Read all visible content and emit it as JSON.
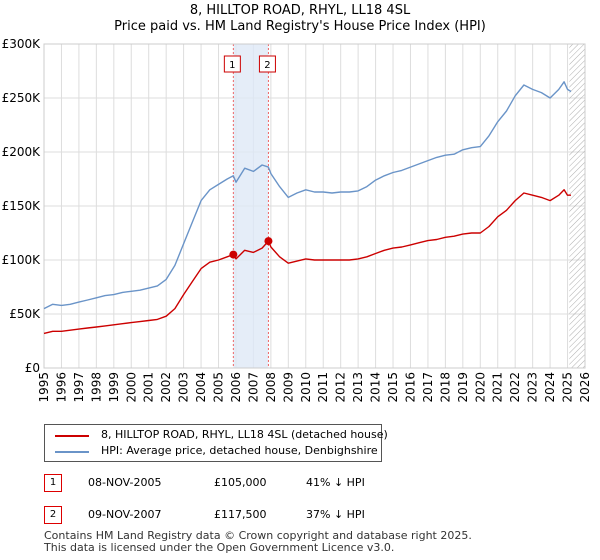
{
  "titles": {
    "line1": "8, HILLTOP ROAD, RHYL, LL18 4SL",
    "line2": "Price paid vs. HM Land Registry's House Price Index (HPI)"
  },
  "colors": {
    "property": "#cc0000",
    "hpi": "#6a94c8",
    "highlight": "#dfe8f6",
    "grid": "#dddddd",
    "marker_line": "#ee6666"
  },
  "legend": {
    "property_label": "8, HILLTOP ROAD, RHYL, LL18 4SL (detached house)",
    "hpi_label": "HPI: Average price, detached house, Denbighshire"
  },
  "transactions": [
    {
      "id": "1",
      "date": "08-NOV-2005",
      "price": "£105,000",
      "hpi_diff": "41% ↓ HPI"
    },
    {
      "id": "2",
      "date": "09-NOV-2007",
      "price": "£117,500",
      "hpi_diff": "37% ↓ HPI"
    }
  ],
  "footer": {
    "line1": "Contains HM Land Registry data © Crown copyright and database right 2025.",
    "line2": "This data is licensed under the Open Government Licence v3.0."
  },
  "chart_data": {
    "type": "line",
    "title": "8, HILLTOP ROAD, RHYL, LL18 4SL — Price paid vs. HM Land Registry's House Price Index (HPI)",
    "xlim": [
      1995,
      2026
    ],
    "ylim": [
      0,
      300000
    ],
    "x_ticks": [
      1995,
      1996,
      1997,
      1998,
      1999,
      2000,
      2001,
      2002,
      2003,
      2004,
      2005,
      2006,
      2007,
      2008,
      2009,
      2010,
      2011,
      2012,
      2013,
      2014,
      2015,
      2016,
      2017,
      2018,
      2019,
      2020,
      2021,
      2022,
      2023,
      2024,
      2025,
      2026
    ],
    "y_ticks": [
      {
        "value": 0,
        "label": "£0"
      },
      {
        "value": 50000,
        "label": "£50K"
      },
      {
        "value": 100000,
        "label": "£100K"
      },
      {
        "value": 150000,
        "label": "£150K"
      },
      {
        "value": 200000,
        "label": "£200K"
      },
      {
        "value": 250000,
        "label": "£250K"
      },
      {
        "value": 300000,
        "label": "£300K"
      }
    ],
    "highlight_range": [
      2005.85,
      2007.86
    ],
    "hatch_from": 2025.1,
    "series": [
      {
        "name": "HPI: Average price, detached house, Denbighshire",
        "x": [
          1995,
          1995.5,
          1996,
          1996.5,
          1997,
          1997.5,
          1998,
          1998.5,
          1999,
          1999.5,
          2000,
          2000.5,
          2001,
          2001.5,
          2002,
          2002.5,
          2003,
          2003.5,
          2004,
          2004.5,
          2005,
          2005.5,
          2005.85,
          2006,
          2006.5,
          2007,
          2007.5,
          2007.86,
          2008,
          2008.5,
          2009,
          2009.5,
          2010,
          2010.5,
          2011,
          2011.5,
          2012,
          2012.5,
          2013,
          2013.5,
          2014,
          2014.5,
          2015,
          2015.5,
          2016,
          2016.5,
          2017,
          2017.5,
          2018,
          2018.5,
          2019,
          2019.5,
          2020,
          2020.5,
          2021,
          2021.5,
          2022,
          2022.5,
          2023,
          2023.5,
          2024,
          2024.5,
          2024.8,
          2025,
          2025.2
        ],
        "values": [
          55000,
          59000,
          58000,
          59000,
          61000,
          63000,
          65000,
          67000,
          68000,
          70000,
          71000,
          72000,
          74000,
          76000,
          82000,
          95000,
          115000,
          135000,
          155000,
          165000,
          170000,
          175000,
          178000,
          172000,
          185000,
          182000,
          188000,
          186000,
          180000,
          168000,
          158000,
          162000,
          165000,
          163000,
          163000,
          162000,
          163000,
          163000,
          164000,
          168000,
          174000,
          178000,
          181000,
          183000,
          186000,
          189000,
          192000,
          195000,
          197000,
          198000,
          202000,
          204000,
          205000,
          215000,
          228000,
          238000,
          252000,
          262000,
          258000,
          255000,
          250000,
          258000,
          265000,
          258000,
          256000
        ]
      },
      {
        "name": "8, HILLTOP ROAD, RHYL, LL18 4SL (detached house)",
        "x": [
          1995,
          1995.5,
          1996,
          1996.5,
          1997,
          1997.5,
          1998,
          1998.5,
          1999,
          1999.5,
          2000,
          2000.5,
          2001,
          2001.5,
          2002,
          2002.5,
          2003,
          2003.5,
          2004,
          2004.5,
          2005,
          2005.5,
          2005.85,
          2006,
          2006.5,
          2007,
          2007.5,
          2007.86,
          2008,
          2008.5,
          2009,
          2009.5,
          2010,
          2010.5,
          2011,
          2011.5,
          2012,
          2012.5,
          2013,
          2013.5,
          2014,
          2014.5,
          2015,
          2015.5,
          2016,
          2016.5,
          2017,
          2017.5,
          2018,
          2018.5,
          2019,
          2019.5,
          2020,
          2020.5,
          2021,
          2021.5,
          2022,
          2022.5,
          2023,
          2023.5,
          2024,
          2024.5,
          2024.8,
          2025,
          2025.2
        ],
        "values": [
          32000,
          34000,
          34000,
          35000,
          36000,
          37000,
          38000,
          39000,
          40000,
          41000,
          42000,
          43000,
          44000,
          45000,
          48000,
          55000,
          68000,
          80000,
          92000,
          98000,
          100000,
          103000,
          105000,
          101000,
          109000,
          107000,
          111000,
          117500,
          112000,
          103000,
          97000,
          99000,
          101000,
          100000,
          100000,
          100000,
          100000,
          100000,
          101000,
          103000,
          106000,
          109000,
          111000,
          112000,
          114000,
          116000,
          118000,
          119000,
          121000,
          122000,
          124000,
          125000,
          125000,
          131000,
          140000,
          146000,
          155000,
          162000,
          160000,
          158000,
          155000,
          160000,
          165000,
          160000,
          160000
        ]
      }
    ],
    "markers": [
      {
        "label": "1",
        "x": 2005.85,
        "y": 105000
      },
      {
        "label": "2",
        "x": 2007.86,
        "y": 117500
      }
    ]
  }
}
